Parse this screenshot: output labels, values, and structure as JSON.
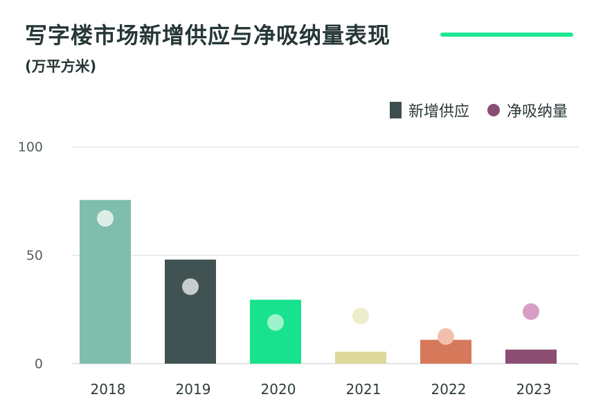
{
  "header": {
    "title": "写字楼市场新增供应与净吸纳量表现",
    "subtitle": "(万平方米)",
    "accent_color": "#1de891"
  },
  "legend": {
    "supply_label": "新增供应",
    "absorption_label": "净吸纳量",
    "supply_color": "#3e4d4d",
    "absorption_color": "#8a4e72"
  },
  "chart_data": {
    "type": "bar",
    "categories": [
      "2018",
      "2019",
      "2020",
      "2021",
      "2022",
      "2023"
    ],
    "series": [
      {
        "name": "新增供应",
        "kind": "bar",
        "values": [
          75.5,
          48,
          29.5,
          5.5,
          11,
          6.5
        ]
      },
      {
        "name": "净吸纳量",
        "kind": "dot",
        "values": [
          67,
          35.5,
          19,
          22,
          12.5,
          24
        ]
      }
    ],
    "bar_colors": [
      "#7fbdad",
      "#415252",
      "#19e28f",
      "#dcd99a",
      "#d6785a",
      "#8b4e72"
    ],
    "dot_colors": [
      "#ddeee7",
      "#c8cccc",
      "#9df3cb",
      "#eeedcc",
      "#f0c0ad",
      "#d79ec3"
    ],
    "yticks": [
      0,
      50,
      100
    ],
    "ylim": [
      0,
      100
    ],
    "grid": true,
    "legend_position": "top-right"
  }
}
